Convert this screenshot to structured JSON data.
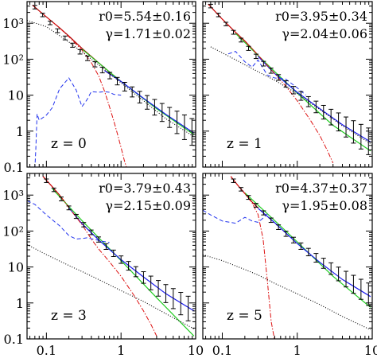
{
  "chart_data": [
    {
      "type": "line",
      "z_label": "z = 0",
      "r0_label": "r0=5.54±0.16",
      "gamma_label": "γ=1.71±0.02",
      "xscale": "log",
      "yscale": "log",
      "xlim": [
        0.055,
        10
      ],
      "ylim": [
        0.1,
        4000
      ],
      "colors": {
        "data": "#000000",
        "fit": "#00cc00",
        "total": "#cc0000",
        "one_halo": "#cc0000",
        "two_halo": "#1a1aff",
        "dotted": "#000000"
      },
      "data_points": {
        "x": [
          0.07,
          0.089,
          0.112,
          0.141,
          0.178,
          0.224,
          0.282,
          0.355,
          0.447,
          0.562,
          0.708,
          0.891,
          1.12,
          1.41,
          1.78,
          2.24,
          2.82,
          3.55,
          4.47,
          5.62,
          7.08,
          8.91
        ],
        "y": [
          2800,
          1700,
          1020,
          620,
          390,
          245,
          160,
          106,
          72,
          50,
          35,
          24.5,
          17.2,
          12.3,
          8.8,
          6.3,
          4.6,
          3.3,
          2.4,
          1.75,
          1.28,
          0.95
        ],
        "err_factor": [
          1.12,
          1.12,
          1.12,
          1.13,
          1.13,
          1.14,
          1.15,
          1.16,
          1.18,
          1.2,
          1.23,
          1.27,
          1.32,
          1.38,
          1.45,
          1.55,
          1.65,
          1.78,
          1.9,
          2.05,
          2.2,
          2.35
        ]
      },
      "series": [
        {
          "style": "solid-red",
          "x": [
            0.065,
            0.1,
            0.15,
            0.2,
            0.3,
            0.5,
            0.7,
            1.0
          ],
          "y": [
            3200,
            1500,
            750,
            440,
            200,
            80,
            44,
            24
          ]
        },
        {
          "style": "solid-green",
          "x": [
            0.3,
            1,
            3,
            9.5
          ],
          "y": [
            190,
            24,
            4.2,
            0.8
          ]
        },
        {
          "style": "solid-blue",
          "x": [
            0.6,
            1,
            2,
            4,
            9.5
          ],
          "y": [
            48,
            24,
            8.2,
            2.9,
            0.88
          ]
        },
        {
          "style": "dashdot-red",
          "x": [
            0.065,
            0.1,
            0.15,
            0.2,
            0.3,
            0.4,
            0.5,
            0.6,
            0.7,
            0.8,
            0.9,
            1.0,
            1.1,
            1.2
          ],
          "y": [
            3200,
            1500,
            740,
            420,
            180,
            80,
            35,
            13,
            4.8,
            1.9,
            0.8,
            0.35,
            0.16,
            0.08
          ]
        },
        {
          "style": "dashed-blue",
          "x": [
            0.07,
            0.072,
            0.075,
            0.08,
            0.1,
            0.12,
            0.15,
            0.2,
            0.25,
            0.3,
            0.35,
            0.4,
            0.5,
            0.6,
            0.7,
            0.8,
            1.0
          ],
          "y": [
            0.08,
            0.3,
            3,
            2.0,
            2.8,
            4.5,
            15,
            30,
            14,
            4.8,
            7.5,
            12.5,
            12,
            12.5,
            12,
            10.5,
            10
          ]
        },
        {
          "style": "dotted-black",
          "x": [
            0.055,
            0.1,
            0.2,
            0.3,
            0.5,
            1,
            2,
            4,
            9.5
          ],
          "y": [
            1200,
            800,
            300,
            160,
            70,
            22,
            7,
            2.2,
            0.7
          ]
        }
      ]
    },
    {
      "type": "line",
      "z_label": "z = 1",
      "r0_label": "r0=3.95±0.34",
      "gamma_label": "γ=2.04±0.06",
      "xscale": "log",
      "yscale": "log",
      "xlim": [
        0.055,
        10
      ],
      "ylim": [
        0.1,
        4000
      ],
      "colors": {
        "data": "#000000",
        "fit": "#00cc00",
        "total": "#cc0000",
        "one_halo": "#cc0000",
        "two_halo": "#1a1aff",
        "dotted": "#000000"
      },
      "data_points": {
        "x": [
          0.07,
          0.089,
          0.112,
          0.141,
          0.178,
          0.224,
          0.282,
          0.355,
          0.447,
          0.562,
          0.708,
          0.891,
          1.12,
          1.41,
          1.78,
          2.24,
          2.82,
          3.55,
          4.47,
          5.62,
          7.08,
          8.91
        ],
        "y": [
          3000,
          1700,
          950,
          560,
          340,
          200,
          120,
          75,
          48,
          31,
          20.5,
          13.8,
          9.5,
          6.6,
          4.7,
          3.35,
          2.45,
          1.8,
          1.3,
          0.95,
          0.7,
          0.52
        ],
        "err_factor": [
          1.12,
          1.12,
          1.12,
          1.13,
          1.13,
          1.14,
          1.15,
          1.16,
          1.18,
          1.2,
          1.23,
          1.27,
          1.32,
          1.38,
          1.45,
          1.55,
          1.65,
          1.78,
          1.9,
          2.05,
          2.2,
          2.35
        ]
      },
      "series": [
        {
          "style": "solid-red",
          "x": [
            0.065,
            0.1,
            0.15,
            0.2,
            0.3
          ],
          "y": [
            3400,
            1300,
            560,
            320,
            130
          ]
        },
        {
          "style": "solid-green",
          "x": [
            0.15,
            0.5,
            1,
            3,
            9.5
          ],
          "y": [
            520,
            45,
            11.5,
            1.45,
            0.28
          ]
        },
        {
          "style": "solid-blue",
          "x": [
            0.3,
            0.5,
            1,
            2,
            4,
            9.5
          ],
          "y": [
            120,
            40,
            12,
            4.2,
            1.5,
            0.5
          ]
        },
        {
          "style": "dashdot-red",
          "x": [
            0.065,
            0.1,
            0.15,
            0.2,
            0.3,
            0.5,
            0.7,
            1.0,
            1.5,
            2.0,
            2.5,
            3.0
          ],
          "y": [
            3400,
            1300,
            560,
            320,
            130,
            40,
            18,
            7,
            2,
            0.75,
            0.3,
            0.13
          ]
        },
        {
          "style": "dashed-blue",
          "x": [
            0.12,
            0.15,
            0.2,
            0.25,
            0.3,
            0.4,
            0.5,
            0.7,
            1.0,
            1.3
          ],
          "y": [
            140,
            165,
            85,
            60,
            95,
            36,
            30,
            28,
            16,
            10
          ]
        },
        {
          "style": "dotted-black",
          "x": [
            0.07,
            0.1,
            0.2,
            0.3,
            0.5,
            1,
            2,
            4,
            9.5
          ],
          "y": [
            220,
            150,
            70,
            45,
            26,
            11,
            4,
            1.4,
            0.45
          ]
        }
      ]
    },
    {
      "type": "line",
      "z_label": "z = 3",
      "r0_label": "r0=3.79±0.43",
      "gamma_label": "γ=2.15±0.09",
      "xscale": "log",
      "yscale": "log",
      "xlim": [
        0.055,
        10
      ],
      "ylim": [
        0.1,
        4000
      ],
      "colors": {
        "data": "#000000",
        "fit": "#00cc00",
        "total": "#cc0000",
        "one_halo": "#cc0000",
        "two_halo": "#1a1aff",
        "dotted": "#000000"
      },
      "data_points": {
        "x": [
          0.1,
          0.126,
          0.158,
          0.2,
          0.251,
          0.316,
          0.398,
          0.501,
          0.631,
          0.794,
          1.0,
          1.26,
          1.58,
          2.0,
          2.51,
          3.16,
          3.98,
          5.01,
          6.31,
          7.94
        ],
        "y": [
          2500,
          1400,
          780,
          440,
          255,
          150,
          92,
          58,
          37,
          24,
          16,
          10.8,
          7.4,
          5.1,
          3.6,
          2.55,
          1.82,
          1.32,
          0.96,
          0.7
        ],
        "err_factor": [
          1.12,
          1.12,
          1.13,
          1.13,
          1.14,
          1.15,
          1.16,
          1.18,
          1.2,
          1.23,
          1.27,
          1.32,
          1.38,
          1.45,
          1.55,
          1.65,
          1.78,
          1.9,
          2.05,
          2.2
        ]
      },
      "series": [
        {
          "style": "solid-red",
          "x": [
            0.09,
            0.12,
            0.15,
            0.2
          ],
          "y": [
            3300,
            1700,
            1000,
            460
          ]
        },
        {
          "style": "solid-green",
          "x": [
            0.12,
            0.3,
            1,
            3,
            9.5
          ],
          "y": [
            1500,
            195,
            15,
            1.4,
            0.12
          ]
        },
        {
          "style": "solid-blue",
          "x": [
            0.2,
            0.3,
            0.5,
            1,
            2,
            4,
            9.5
          ],
          "y": [
            440,
            160,
            57,
            16,
            5.3,
            1.8,
            0.6
          ]
        },
        {
          "style": "dashdot-red",
          "x": [
            0.09,
            0.12,
            0.15,
            0.2,
            0.3,
            0.4,
            0.5,
            0.7,
            1.0,
            1.5,
            2.0,
            2.5,
            3.0
          ],
          "y": [
            3300,
            1700,
            1000,
            450,
            150,
            60,
            32,
            14,
            5.5,
            1.6,
            0.6,
            0.26,
            0.12
          ]
        },
        {
          "style": "dashed-blue",
          "x": [
            0.055,
            0.07,
            0.1,
            0.15,
            0.2,
            0.25,
            0.3,
            0.35,
            0.45,
            0.55,
            0.7
          ],
          "y": [
            700,
            550,
            280,
            140,
            75,
            60,
            62,
            65,
            58,
            52,
            48
          ]
        },
        {
          "style": "dotted-black",
          "x": [
            0.055,
            0.1,
            0.2,
            0.3,
            0.5,
            1,
            2,
            4,
            9.5
          ],
          "y": [
            42,
            22,
            11,
            7.5,
            4.5,
            2.2,
            1.1,
            0.5,
            0.19
          ]
        }
      ]
    },
    {
      "type": "line",
      "z_label": "z = 5",
      "r0_label": "r0=4.37±0.37",
      "gamma_label": "γ=1.95±0.08",
      "xscale": "log",
      "yscale": "log",
      "xlim": [
        0.055,
        10
      ],
      "ylim": [
        0.1,
        4000
      ],
      "colors": {
        "data": "#000000",
        "fit": "#00cc00",
        "total": "#cc0000",
        "one_halo": "#cc0000",
        "two_halo": "#1a1aff",
        "dotted": "#000000"
      },
      "data_points": {
        "x": [
          0.141,
          0.178,
          0.224,
          0.282,
          0.355,
          0.447,
          0.562,
          0.708,
          0.891,
          1.12,
          1.41,
          1.78,
          2.24,
          2.82,
          3.55,
          4.47,
          5.62,
          7.08,
          8.91
        ],
        "y": [
          2500,
          1450,
          860,
          520,
          320,
          200,
          128,
          84,
          56,
          38,
          26,
          18,
          12.7,
          9,
          6.4,
          4.6,
          3.3,
          2.4,
          1.75
        ],
        "err_factor": [
          1.12,
          1.12,
          1.13,
          1.13,
          1.14,
          1.15,
          1.16,
          1.18,
          1.2,
          1.23,
          1.27,
          1.32,
          1.38,
          1.45,
          1.55,
          1.65,
          1.78,
          1.9,
          2.05
        ]
      },
      "series": [
        {
          "style": "solid-red",
          "x": [
            0.13,
            0.16,
            0.2,
            0.25,
            0.3
          ],
          "y": [
            3300,
            1900,
            1100,
            640,
            440
          ]
        },
        {
          "style": "solid-green",
          "x": [
            0.2,
            0.5,
            1,
            3,
            9.5
          ],
          "y": [
            1150,
            195,
            50,
            5.5,
            0.75
          ]
        },
        {
          "style": "solid-blue",
          "x": [
            0.3,
            0.5,
            1,
            2,
            4,
            9.5
          ],
          "y": [
            430,
            170,
            45,
            13.5,
            4.5,
            1.5
          ]
        },
        {
          "style": "dashdot-red",
          "x": [
            0.13,
            0.16,
            0.2,
            0.25,
            0.3,
            0.35,
            0.4,
            0.45,
            0.5
          ],
          "y": [
            3300,
            1900,
            1100,
            600,
            290,
            60,
            4,
            0.3,
            0.03
          ]
        },
        {
          "style": "dashed-blue",
          "x": [
            0.055,
            0.07,
            0.1,
            0.15,
            0.2,
            0.25,
            0.3,
            0.35,
            0.4
          ],
          "y": [
            380,
            280,
            190,
            165,
            240,
            190,
            175,
            230,
            300
          ]
        },
        {
          "style": "dotted-black",
          "x": [
            0.055,
            0.1,
            0.2,
            0.3,
            0.5,
            1,
            2,
            4,
            9.5
          ],
          "y": [
            22,
            15,
            8.5,
            6,
            3.5,
            1.8,
            0.9,
            0.42,
            0.18
          ]
        }
      ]
    }
  ],
  "y_tick_labels": [
    "10³",
    "10²",
    "10",
    "1",
    "0.1"
  ],
  "x_tick_labels": [
    "0.1",
    "1",
    "10"
  ],
  "x_tick_values": [
    0.1,
    1,
    10
  ],
  "y_tick_values": [
    1000,
    100,
    10,
    1,
    0.1
  ]
}
